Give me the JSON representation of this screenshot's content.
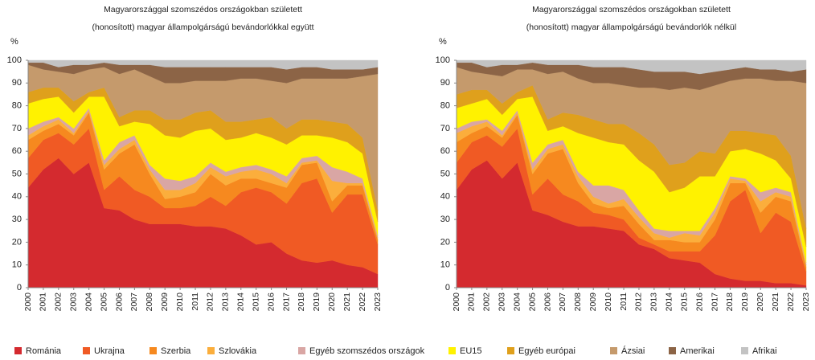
{
  "legend": [
    {
      "name": "Románia",
      "color": "#d42a2f"
    },
    {
      "name": "Ukrajna",
      "color": "#f05a24"
    },
    {
      "name": "Szerbia",
      "color": "#f6891f"
    },
    {
      "name": "Szlovákia",
      "color": "#fbae3c"
    },
    {
      "name": "Egyéb szomszédos országok",
      "color": "#d9a6a4"
    },
    {
      "name": "EU15",
      "color": "#fff200"
    },
    {
      "name": "Egyéb európai",
      "color": "#dfa01c"
    },
    {
      "name": "Ázsiai",
      "color": "#c59a6c"
    },
    {
      "name": "Amerikai",
      "color": "#8c6446"
    },
    {
      "name": "Afrikai",
      "color": "#c3c3c3"
    }
  ],
  "chart_data": [
    {
      "type": "stacked-area",
      "title": "Magyarországgal szomszédos országokban született",
      "subtitle": "(honosított) magyar állampolgárságú  bevándorlókkal együtt",
      "ylabel": "%",
      "categories": [
        "2000",
        "2001",
        "2002",
        "2003",
        "2004",
        "2005",
        "2006",
        "2007",
        "2008",
        "2009",
        "2010",
        "2011",
        "2012",
        "2013",
        "2014",
        "2015",
        "2016",
        "2017",
        "2018",
        "2019",
        "2020",
        "2021",
        "2022",
        "2023"
      ],
      "ylim": [
        0,
        100
      ],
      "yticks": [
        0,
        10,
        20,
        30,
        40,
        50,
        60,
        70,
        80,
        90,
        100
      ],
      "series": [
        {
          "values": [
            44,
            52,
            57,
            50,
            55,
            35,
            34,
            30,
            28,
            28,
            28,
            27,
            27,
            26,
            23,
            19,
            20,
            15,
            12,
            11,
            12,
            10,
            9,
            6
          ]
        },
        {
          "values": [
            13,
            13,
            11,
            13,
            15,
            8,
            15,
            13,
            12,
            7,
            7,
            9,
            13,
            10,
            19,
            25,
            22,
            22,
            34,
            37,
            21,
            31,
            32,
            13
          ]
        },
        {
          "values": [
            8,
            4,
            4,
            4,
            7,
            9,
            10,
            20,
            10,
            4,
            5,
            6,
            10,
            9,
            6,
            4,
            4,
            7,
            8,
            7,
            5,
            4,
            4,
            2
          ]
        },
        {
          "values": [
            2,
            2,
            2,
            1,
            1,
            2,
            2,
            2,
            2,
            4,
            3,
            4,
            3,
            4,
            3,
            4,
            4,
            2,
            1,
            1,
            9,
            1,
            1,
            1
          ]
        },
        {
          "values": [
            3,
            2,
            1,
            2,
            1,
            2,
            3,
            2,
            2,
            5,
            4,
            3,
            2,
            2,
            2,
            2,
            2,
            3,
            2,
            2,
            6,
            5,
            2,
            1
          ]
        },
        {
          "values": [
            11,
            10,
            9,
            7,
            5,
            28,
            7,
            6,
            18,
            19,
            19,
            20,
            15,
            14,
            13,
            14,
            14,
            14,
            10,
            9,
            13,
            13,
            11,
            6
          ]
        },
        {
          "values": [
            5,
            5,
            4,
            5,
            2,
            4,
            4,
            5,
            6,
            7,
            8,
            8,
            8,
            8,
            7,
            6,
            9,
            7,
            7,
            7,
            7,
            8,
            7,
            5
          ]
        },
        {
          "values": [
            12,
            8,
            7,
            12,
            10,
            9,
            19,
            18,
            15,
            16,
            16,
            14,
            13,
            18,
            19,
            18,
            16,
            20,
            18,
            18,
            19,
            20,
            27,
            60
          ]
        },
        {
          "values": [
            1,
            3,
            2,
            4,
            2,
            2,
            4,
            2,
            5,
            7,
            7,
            6,
            6,
            6,
            5,
            5,
            6,
            6,
            5,
            5,
            4,
            4,
            3,
            3
          ]
        },
        {
          "values": [
            1,
            1,
            3,
            2,
            2,
            1,
            2,
            2,
            2,
            3,
            3,
            3,
            3,
            3,
            3,
            3,
            3,
            4,
            3,
            3,
            4,
            4,
            4,
            3
          ]
        }
      ]
    },
    {
      "type": "stacked-area",
      "title": "Magyarországgal szomszédos országokban született",
      "subtitle": "(honosított) magyar állampolgárságú bevándorlók  nélkül",
      "ylabel": "%",
      "categories": [
        "2000",
        "2001",
        "2002",
        "2003",
        "2004",
        "2005",
        "2006",
        "2007",
        "2008",
        "2009",
        "2010",
        "2011",
        "2012",
        "2013",
        "2014",
        "2015",
        "2016",
        "2017",
        "2018",
        "2019",
        "2020",
        "2021",
        "2022",
        "2023"
      ],
      "ylim": [
        0,
        100
      ],
      "yticks": [
        0,
        10,
        20,
        30,
        40,
        50,
        60,
        70,
        80,
        90,
        100
      ],
      "series": [
        {
          "values": [
            43,
            52,
            56,
            48,
            55,
            34,
            32,
            29,
            27,
            27,
            26,
            25,
            19,
            17,
            13,
            12,
            11,
            6,
            4,
            3,
            3,
            2,
            2,
            1
          ]
        },
        {
          "values": [
            12,
            12,
            11,
            14,
            15,
            7,
            16,
            12,
            11,
            6,
            6,
            5,
            3,
            2,
            3,
            4,
            5,
            17,
            34,
            40,
            21,
            31,
            27,
            6
          ]
        },
        {
          "values": [
            9,
            4,
            4,
            4,
            6,
            9,
            11,
            20,
            8,
            4,
            3,
            6,
            6,
            2,
            5,
            4,
            4,
            7,
            8,
            3,
            9,
            7,
            9,
            2
          ]
        },
        {
          "values": [
            4,
            3,
            2,
            1,
            1,
            2,
            2,
            2,
            3,
            3,
            2,
            3,
            3,
            3,
            1,
            4,
            3,
            3,
            2,
            1,
            5,
            2,
            2,
            1
          ]
        },
        {
          "values": [
            2,
            2,
            1,
            2,
            1,
            3,
            2,
            2,
            2,
            5,
            8,
            4,
            3,
            2,
            3,
            1,
            2,
            2,
            1,
            1,
            4,
            2,
            2,
            1
          ]
        },
        {
          "values": [
            9,
            8,
            9,
            7,
            5,
            29,
            6,
            6,
            17,
            21,
            19,
            20,
            22,
            25,
            17,
            19,
            24,
            14,
            11,
            13,
            17,
            12,
            6,
            7
          ]
        },
        {
          "values": [
            6,
            6,
            4,
            5,
            3,
            5,
            5,
            6,
            8,
            8,
            8,
            9,
            12,
            12,
            12,
            11,
            11,
            10,
            9,
            8,
            9,
            11,
            10,
            8
          ]
        },
        {
          "values": [
            12,
            8,
            7,
            12,
            10,
            7,
            20,
            18,
            16,
            16,
            18,
            17,
            20,
            25,
            33,
            33,
            27,
            30,
            22,
            23,
            24,
            24,
            33,
            64
          ]
        },
        {
          "values": [
            2,
            4,
            3,
            5,
            2,
            3,
            4,
            3,
            6,
            7,
            7,
            8,
            8,
            7,
            8,
            7,
            7,
            6,
            5,
            5,
            4,
            5,
            4,
            6
          ]
        },
        {
          "values": [
            1,
            1,
            3,
            2,
            2,
            1,
            2,
            2,
            2,
            3,
            3,
            3,
            4,
            5,
            5,
            5,
            6,
            5,
            4,
            3,
            4,
            4,
            5,
            4
          ]
        }
      ]
    }
  ]
}
